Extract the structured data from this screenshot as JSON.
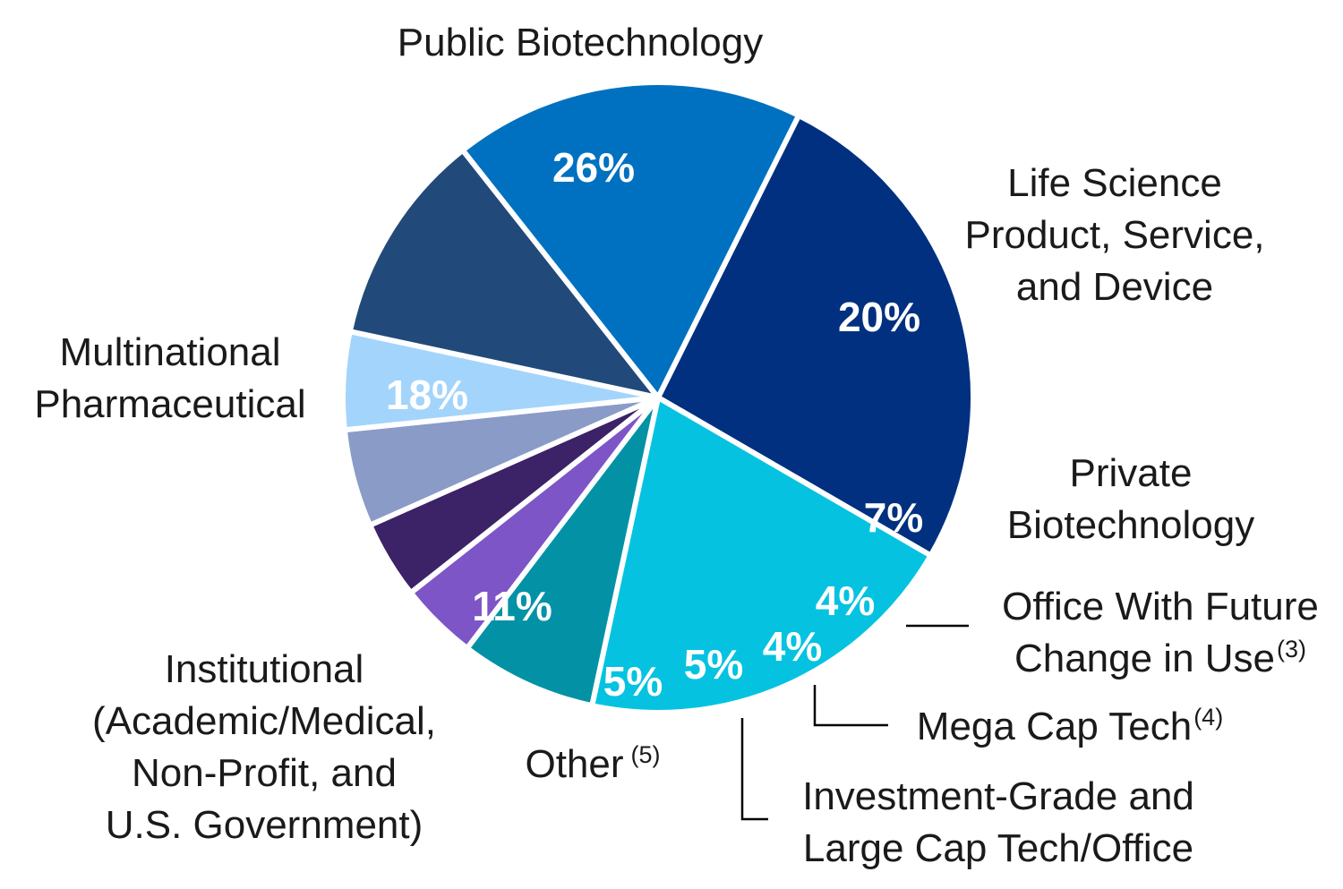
{
  "chart_data": {
    "type": "pie",
    "unit": "%",
    "start_direction": "clockwise",
    "slices": [
      {
        "name": "Public Biotechnology",
        "value": 26,
        "value_label": "26%",
        "color": "#00307f",
        "label_lines": [
          "Public Biotechnology"
        ],
        "footnote": ""
      },
      {
        "name": "Life Science Product, Service, and Device",
        "value": 20,
        "value_label": "20%",
        "color": "#05c3e0",
        "label_lines": [
          "Life Science",
          "Product, Service,",
          "and Device"
        ],
        "footnote": ""
      },
      {
        "name": "Private Biotechnology",
        "value": 7,
        "value_label": "7%",
        "color": "#0392a5",
        "label_lines": [
          "Private",
          "Biotechnology"
        ],
        "footnote": ""
      },
      {
        "name": "Office With Future Change in Use",
        "value": 4,
        "value_label": "4%",
        "color": "#7d55c7",
        "label_lines": [
          "Office With Future",
          "Change in Use"
        ],
        "footnote": "(3)"
      },
      {
        "name": "Mega Cap Tech",
        "value": 4,
        "value_label": "4%",
        "color": "#3c2266",
        "label_lines": [
          "Mega Cap Tech"
        ],
        "footnote": "(4)"
      },
      {
        "name": "Investment-Grade and Large Cap Tech/Office",
        "value": 5,
        "value_label": "5%",
        "color": "#8a9bc8",
        "label_lines": [
          "Investment-Grade and",
          "Large Cap Tech/Office"
        ],
        "footnote": ""
      },
      {
        "name": "Other",
        "value": 5,
        "value_label": "5%",
        "color": "#a3d4fc",
        "label_lines": [
          "Other"
        ],
        "footnote": "(5)"
      },
      {
        "name": "Institutional (Academic/Medical, Non-Profit, and U.S. Government)",
        "value": 11,
        "value_label": "11%",
        "color": "#214a7a",
        "label_lines": [
          "Institutional",
          "(Academic/Medical,",
          "Non-Profit, and",
          "U.S. Government)"
        ],
        "footnote": ""
      },
      {
        "name": "Multinational Pharmaceutical",
        "value": 18,
        "value_label": "18%",
        "color": "#0071c0",
        "label_lines": [
          "Multinational",
          "Pharmaceutical"
        ],
        "footnote": ""
      }
    ]
  }
}
